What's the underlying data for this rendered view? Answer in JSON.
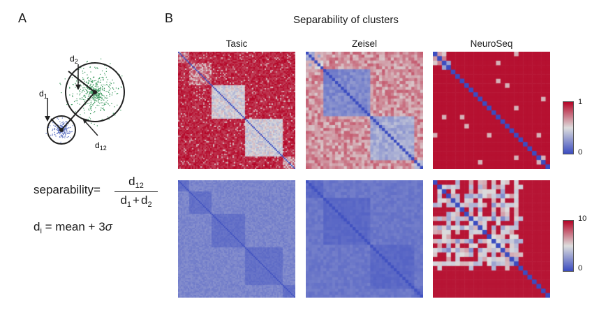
{
  "panels": {
    "a_label": "A",
    "b_label": "B"
  },
  "diagram": {
    "labels": {
      "d1": "d",
      "d1_sub": "1",
      "d2": "d",
      "d2_sub": "2",
      "d12": "d",
      "d12_sub": "12"
    },
    "colors": {
      "cluster_small": "#5a6fc0",
      "cluster_large": "#3c9a5f",
      "outline": "#222222"
    }
  },
  "formula": {
    "lhs": "separability",
    "eq": "=",
    "num_d": "d",
    "num_sub": "12",
    "den_d1": "d",
    "den_sub1": "1",
    "den_plus": "+",
    "den_d2": "d",
    "den_sub2": "2",
    "second_d": "d",
    "second_sub": "i",
    "second_rest": "= mean + 3",
    "sigma": "σ"
  },
  "figure_b": {
    "title": "Separability of clusters",
    "columns": [
      "Tasic",
      "Zeisel",
      "NeuroSeq"
    ],
    "colorbar_top": {
      "max": "1",
      "min": "0"
    },
    "colorbar_bottom": {
      "max": "10",
      "min": "0"
    },
    "colors": {
      "low": "#3b4cc0",
      "mid": "#dddddd",
      "high": "#c1202a"
    }
  },
  "chart_data": {
    "type": "heatmap",
    "title": "Separability of clusters",
    "panels": [
      {
        "row": 1,
        "column": "Tasic",
        "scale": [
          0,
          1
        ]
      },
      {
        "row": 1,
        "column": "Zeisel",
        "scale": [
          0,
          1
        ]
      },
      {
        "row": 1,
        "column": "NeuroSeq",
        "scale": [
          0,
          1
        ]
      },
      {
        "row": 2,
        "column": "Tasic",
        "scale": [
          0,
          10
        ]
      },
      {
        "row": 2,
        "column": "Zeisel",
        "scale": [
          0,
          10
        ]
      },
      {
        "row": 2,
        "column": "NeuroSeq",
        "scale": [
          0,
          10
        ]
      }
    ]
  }
}
